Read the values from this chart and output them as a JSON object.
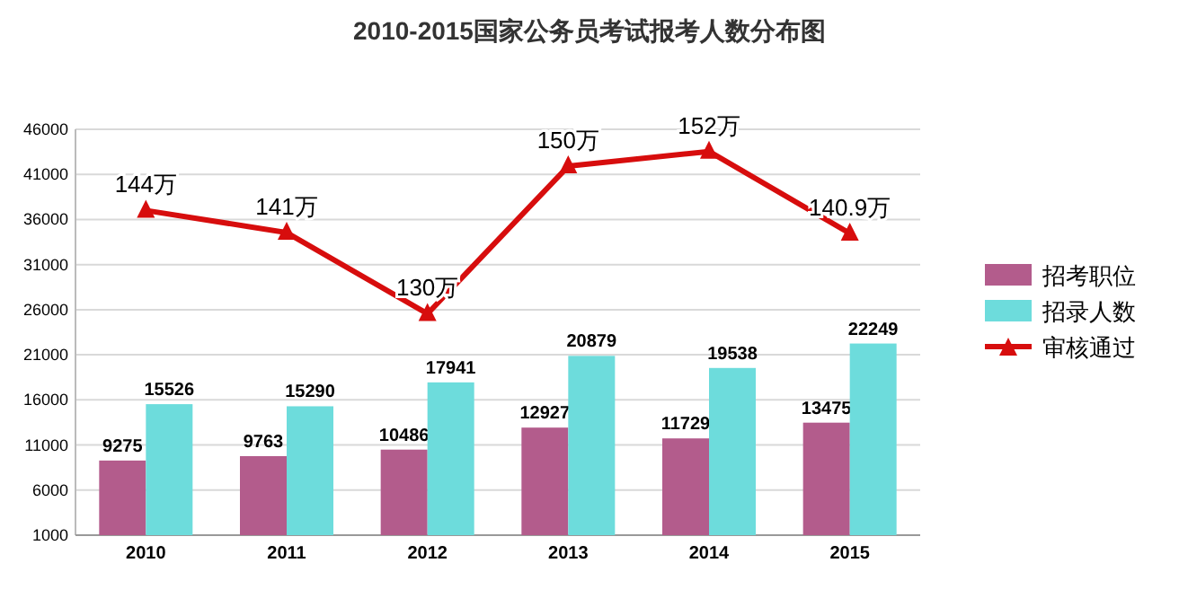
{
  "chart_data": {
    "type": "bar",
    "title": "2010-2015国家公务员考试报考人数分布图",
    "categories": [
      "2010",
      "2011",
      "2012",
      "2013",
      "2014",
      "2015"
    ],
    "series": [
      {
        "name": "招考职位",
        "color": "#b35c8c",
        "values": [
          9275,
          9763,
          10486,
          12927,
          11729,
          13475
        ]
      },
      {
        "name": "招录人数",
        "color": "#6ddcdc",
        "values": [
          15526,
          15290,
          17941,
          20879,
          19538,
          22249
        ]
      },
      {
        "name": "审核通过",
        "type": "line",
        "axis": "y2",
        "color": "#d70d0d",
        "marker": "triangle",
        "values": [
          144,
          141,
          130,
          150,
          152,
          140.9
        ],
        "value_labels": [
          "144万",
          "141万",
          "130万",
          "150万",
          "152万",
          "140.9万"
        ]
      }
    ],
    "ylim": [
      1000,
      46000
    ],
    "yticks": [
      1000,
      6000,
      11000,
      16000,
      21000,
      26000,
      31000,
      36000,
      41000,
      46000
    ],
    "y2lim": [
      100,
      155
    ],
    "tick_labels": "xy",
    "data_labels": true,
    "grid": "y",
    "legend": "right"
  }
}
